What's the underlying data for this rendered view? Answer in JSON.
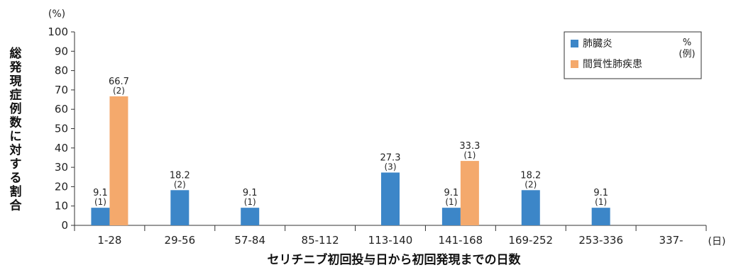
{
  "chart_data": {
    "type": "bar",
    "y_unit": "(%)",
    "x_unit": "(日)",
    "xlabel": "セリチニブ初回投与日から初回発現までの日数",
    "ylabel": "総発現症例数に対する割合",
    "ylim": [
      0,
      100
    ],
    "yticks": [
      0,
      10,
      20,
      30,
      40,
      50,
      60,
      70,
      80,
      90,
      100
    ],
    "categories": [
      "1-28",
      "29-56",
      "57-84",
      "85-112",
      "113-140",
      "141-168",
      "169-252",
      "253-336",
      "337-"
    ],
    "series": [
      {
        "name": "肺臓炎",
        "color": "#3c86c8",
        "values": [
          9.1,
          18.2,
          9.1,
          null,
          27.3,
          9.1,
          18.2,
          9.1,
          null
        ],
        "labels": [
          "9.1",
          "18.2",
          "9.1",
          null,
          "27.3",
          "9.1",
          "18.2",
          "9.1",
          null
        ],
        "counts": [
          "(1)",
          "(2)",
          "(1)",
          null,
          "(3)",
          "(1)",
          "(2)",
          "(1)",
          null
        ]
      },
      {
        "name": "間質性肺疾患",
        "color": "#f4a96c",
        "values": [
          66.7,
          null,
          null,
          null,
          null,
          33.3,
          null,
          null,
          null
        ],
        "labels": [
          "66.7",
          null,
          null,
          null,
          null,
          "33.3",
          null,
          null,
          null
        ],
        "counts": [
          "(2)",
          null,
          null,
          null,
          null,
          "(1)",
          null,
          null,
          null
        ]
      }
    ],
    "legend": {
      "position": "top-right",
      "unit_pct": "%",
      "unit_count": "(例)"
    },
    "grid": false
  }
}
